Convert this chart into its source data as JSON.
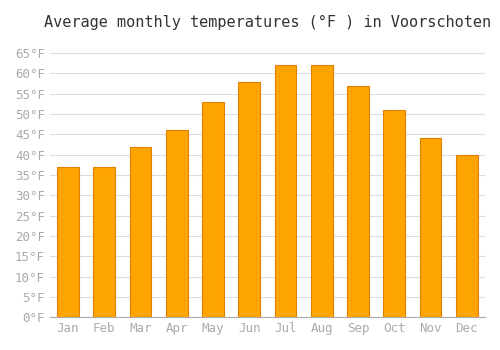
{
  "title": "Average monthly temperatures (°F ) in Voorschoten",
  "months": [
    "Jan",
    "Feb",
    "Mar",
    "Apr",
    "May",
    "Jun",
    "Jul",
    "Aug",
    "Sep",
    "Oct",
    "Nov",
    "Dec"
  ],
  "values": [
    37,
    37,
    42,
    46,
    53,
    58,
    62,
    62,
    57,
    51,
    44,
    40
  ],
  "bar_color": "#FFA500",
  "bar_edge_color": "#E08000",
  "background_color": "#FFFFFF",
  "grid_color": "#DDDDDD",
  "yticks": [
    0,
    5,
    10,
    15,
    20,
    25,
    30,
    35,
    40,
    45,
    50,
    55,
    60,
    65
  ],
  "ylim": [
    0,
    68
  ],
  "title_fontsize": 11,
  "tick_fontsize": 9,
  "tick_color": "#AAAAAA",
  "font_family": "monospace"
}
